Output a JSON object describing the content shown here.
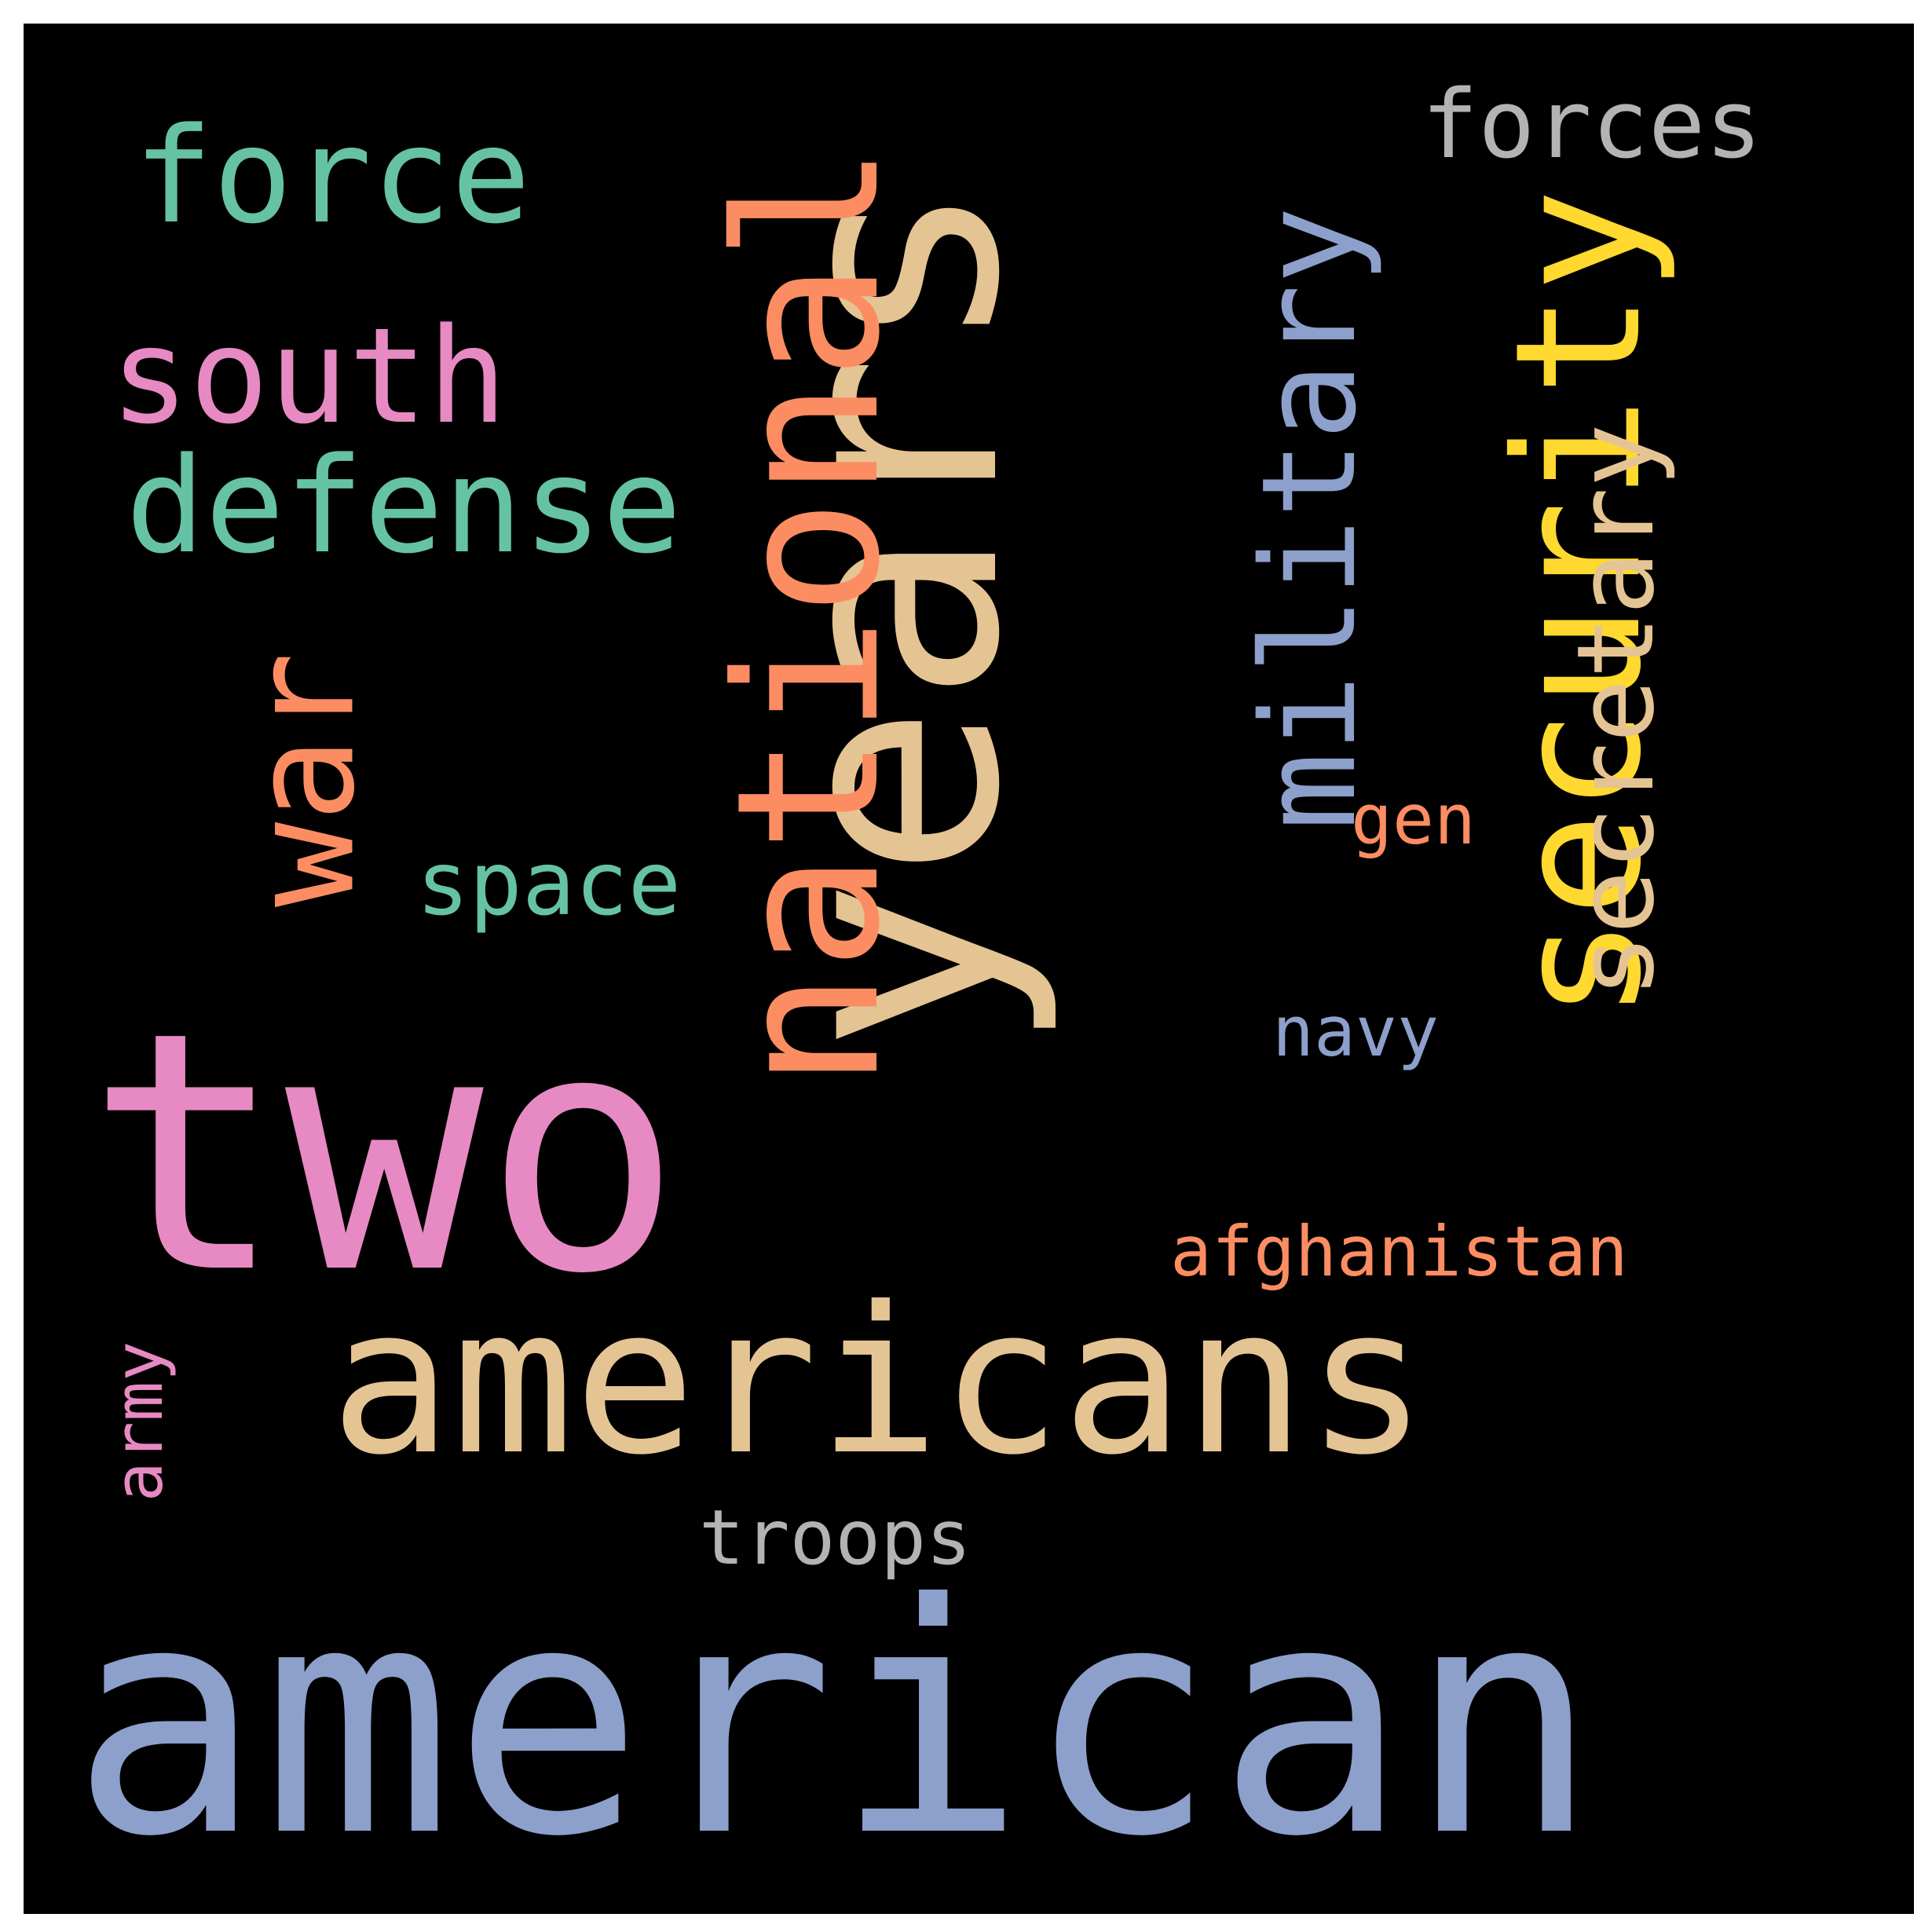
{
  "words": {
    "american": {
      "text": "american",
      "color": "#8DA0CB"
    },
    "years": {
      "text": "years",
      "color": "#E5C494"
    },
    "two": {
      "text": "two",
      "color": "#E78AC3"
    },
    "americans": {
      "text": "americans",
      "color": "#E5C494"
    },
    "national": {
      "text": "national",
      "color": "#FC8D62"
    },
    "security": {
      "text": "security",
      "color": "#FFD92F"
    },
    "military": {
      "text": "military",
      "color": "#8DA0CB"
    },
    "war": {
      "text": "war",
      "color": "#FC8D62"
    },
    "force": {
      "text": "force",
      "color": "#66C2A5"
    },
    "south": {
      "text": "south",
      "color": "#E78AC3"
    },
    "defense": {
      "text": "defense",
      "color": "#66C2A5"
    },
    "forces": {
      "text": "forces",
      "color": "#B3B3B3"
    },
    "secretary": {
      "text": "secretary",
      "color": "#E5C494"
    },
    "space": {
      "text": "space",
      "color": "#66C2A5"
    },
    "gen": {
      "text": "gen",
      "color": "#FC8D62"
    },
    "navy": {
      "text": "navy",
      "color": "#8DA0CB"
    },
    "afghanistan": {
      "text": "afghanistan",
      "color": "#FC8D62"
    },
    "army": {
      "text": "army",
      "color": "#E78AC3"
    },
    "troops": {
      "text": "troops",
      "color": "#B3B3B3"
    }
  }
}
